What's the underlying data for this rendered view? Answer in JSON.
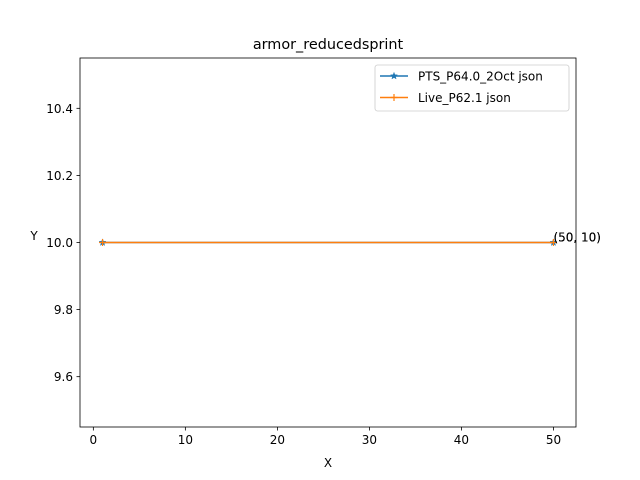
{
  "chart_data": {
    "type": "line",
    "title": "armor_reducedsprint",
    "xlabel": "X",
    "ylabel": "Y",
    "xlim": [
      -1.45,
      52.45
    ],
    "ylim": [
      9.45,
      10.55
    ],
    "xticks": [
      0,
      10,
      20,
      30,
      40,
      50
    ],
    "yticks": [
      9.6,
      9.8,
      10.0,
      10.2,
      10.4
    ],
    "xtick_labels": [
      "0",
      "10",
      "20",
      "30",
      "40",
      "50"
    ],
    "ytick_labels": [
      "9.6",
      "9.8",
      "10.0",
      "10.2",
      "10.4"
    ],
    "series": [
      {
        "name": "PTS_P64.0_2Oct json",
        "color": "#1f77b4",
        "marker": "star",
        "x": [
          1,
          50
        ],
        "y": [
          10,
          10
        ]
      },
      {
        "name": "Live_P62.1 json",
        "color": "#ff7f0e",
        "marker": "plus",
        "x": [
          1,
          50
        ],
        "y": [
          10,
          10
        ]
      }
    ],
    "annotations": [
      {
        "text": "(50, 10)",
        "x": 50,
        "y": 10
      },
      {
        "text": "(50, 10)",
        "x": 50,
        "y": 10
      }
    ],
    "legend_position": "top-right",
    "grid": false
  }
}
